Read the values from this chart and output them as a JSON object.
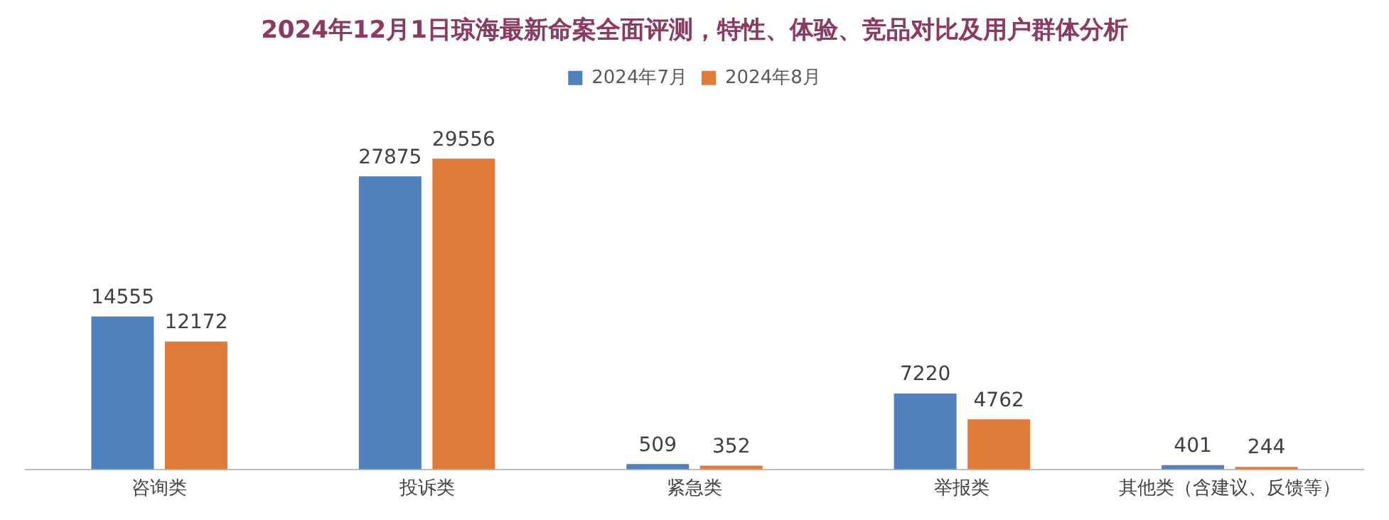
{
  "chart_data": {
    "type": "bar",
    "title": "2024年12月1日琼海最新命案全面评测，特性、体验、竞品对比及用户群体分析",
    "categories": [
      "咨询类",
      "投诉类",
      "紧急类",
      "举报类",
      "其他类（含建议、反馈等）"
    ],
    "series": [
      {
        "name": "2024年7月",
        "color": "#4f81bd",
        "values": [
          14555,
          27875,
          509,
          7220,
          401
        ]
      },
      {
        "name": "2024年8月",
        "color": "#e07b39",
        "values": [
          12172,
          29556,
          352,
          4762,
          244
        ]
      }
    ],
    "data_labels": true,
    "legend": "top",
    "grid": false
  }
}
